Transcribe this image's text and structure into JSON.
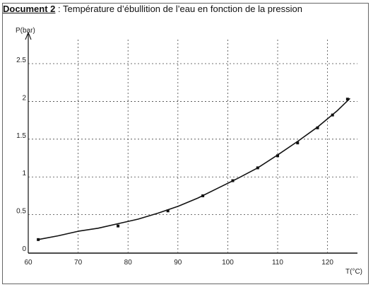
{
  "title": {
    "doc": "Document 2",
    "rest": " : Température d’ébullition de l’eau en fonction de la pression"
  },
  "chart_data": {
    "type": "line",
    "title": "Document 2 : Température d’ébullition de l’eau en fonction de la pression",
    "xlabel": "T(°C)",
    "ylabel": "P(bar)",
    "xlim": [
      60,
      126
    ],
    "ylim": [
      0,
      2.8
    ],
    "xticks": [
      60,
      70,
      80,
      90,
      100,
      110,
      120
    ],
    "yticks": [
      0,
      0.5,
      1,
      1.5,
      2,
      2.5
    ],
    "grid": true,
    "series": [
      {
        "points": [
          [
            62,
            0.17
          ],
          [
            78,
            0.35
          ],
          [
            88,
            0.55
          ],
          [
            95,
            0.75
          ],
          [
            101,
            0.95
          ],
          [
            106,
            1.12
          ],
          [
            110,
            1.28
          ],
          [
            114,
            1.45
          ],
          [
            118,
            1.65
          ],
          [
            121,
            1.82
          ],
          [
            124,
            2.03
          ]
        ],
        "curve": [
          [
            62,
            0.17
          ],
          [
            66,
            0.22
          ],
          [
            70,
            0.28
          ],
          [
            74,
            0.32
          ],
          [
            78,
            0.38
          ],
          [
            82,
            0.44
          ],
          [
            86,
            0.52
          ],
          [
            90,
            0.61
          ],
          [
            94,
            0.72
          ],
          [
            98,
            0.85
          ],
          [
            102,
            0.98
          ],
          [
            106,
            1.12
          ],
          [
            110,
            1.29
          ],
          [
            114,
            1.47
          ],
          [
            118,
            1.66
          ],
          [
            122,
            1.88
          ],
          [
            124.5,
            2.04
          ]
        ]
      }
    ]
  }
}
